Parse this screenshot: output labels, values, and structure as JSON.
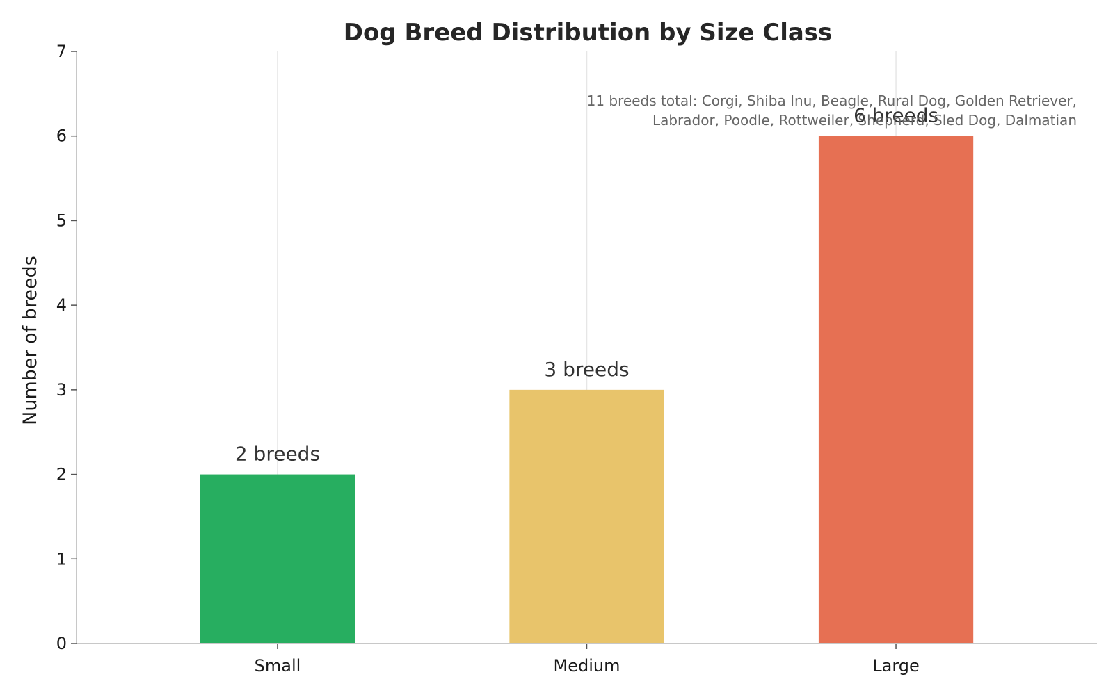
{
  "chart_data": {
    "type": "bar",
    "title": "Dog Breed Distribution by Size Class",
    "xlabel": "",
    "ylabel": "Number of breeds",
    "categories": [
      "Small",
      "Medium",
      "Large"
    ],
    "values": [
      2,
      3,
      6
    ],
    "bar_labels": [
      "2 breeds",
      "3 breeds",
      "6 breeds"
    ],
    "colors": [
      "#27ae60",
      "#e8c46b",
      "#e67053"
    ],
    "ylim": [
      0,
      7
    ],
    "y_ticks": [
      0,
      1,
      2,
      3,
      4,
      5,
      6,
      7
    ],
    "grid": "vertical lines at categories",
    "legend": "none",
    "annotation": {
      "lines": [
        "11 breeds total: Corgi, Shiba Inu, Beagle, Rural Dog, Golden Retriever,",
        "Labrador, Poodle, Rottweiler, Shepherd, Sled Dog, Dalmatian"
      ]
    }
  }
}
